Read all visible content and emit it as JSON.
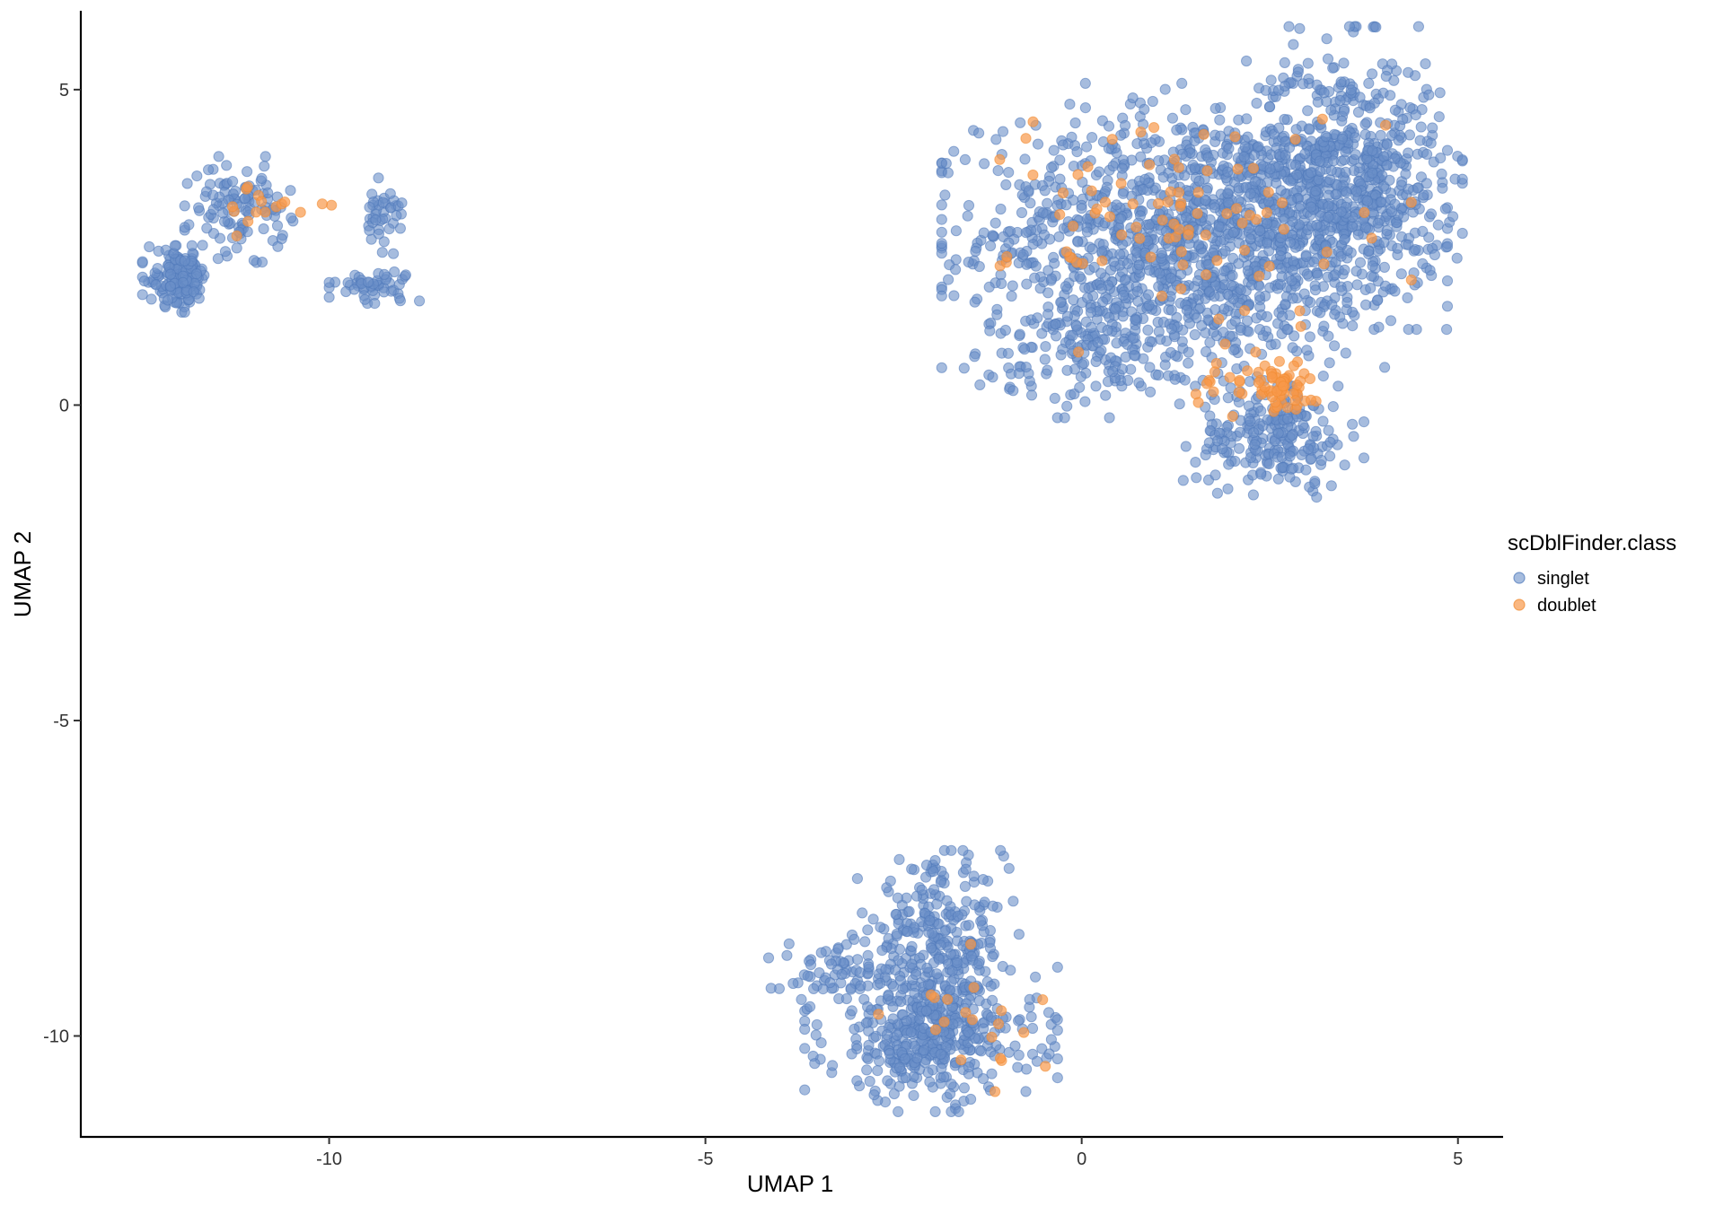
{
  "chart_data": {
    "type": "scatter",
    "title": "",
    "xlabel": "UMAP 1",
    "ylabel": "UMAP 2",
    "xlim": [
      -13.3,
      5.6
    ],
    "ylim": [
      -11.6,
      6.25
    ],
    "x_ticks": [
      -10,
      -5,
      0,
      5
    ],
    "y_ticks": [
      5,
      0,
      -5,
      -10
    ],
    "x_tick_labels": [
      "-10",
      "-5",
      "0",
      "5"
    ],
    "y_tick_labels": [
      "5",
      "0",
      "-5",
      "-10"
    ],
    "grid": false,
    "legend": {
      "title": "scDblFinder.class",
      "position": "right",
      "entries": [
        "singlet",
        "doublet"
      ]
    },
    "series": [
      {
        "name": "singlet",
        "color": "#6A8FC8",
        "opacity": 0.6,
        "clusters": [
          {
            "cx": 1.5,
            "cy": 2.7,
            "sx": 1.4,
            "sy": 1.0,
            "n": 1300
          },
          {
            "cx": 3.5,
            "cy": 3.6,
            "sx": 0.65,
            "sy": 1.0,
            "n": 600
          },
          {
            "cx": 0.3,
            "cy": 1.0,
            "sx": 0.8,
            "sy": 0.5,
            "n": 180
          },
          {
            "cx": 2.55,
            "cy": -0.5,
            "sx": 0.5,
            "sy": 0.4,
            "n": 220
          },
          {
            "cx": -2.0,
            "cy": -10.0,
            "sx": 0.7,
            "sy": 0.5,
            "n": 420
          },
          {
            "cx": -1.9,
            "cy": -8.5,
            "sx": 0.45,
            "sy": 0.6,
            "n": 260
          },
          {
            "cx": -3.2,
            "cy": -9.0,
            "sx": 0.4,
            "sy": 0.25,
            "n": 70
          },
          {
            "cx": -12.0,
            "cy": 2.0,
            "sx": 0.2,
            "sy": 0.22,
            "n": 150
          },
          {
            "cx": -11.2,
            "cy": 3.1,
            "sx": 0.3,
            "sy": 0.35,
            "n": 110
          },
          {
            "cx": -9.3,
            "cy": 3.0,
            "sx": 0.15,
            "sy": 0.25,
            "n": 40
          },
          {
            "cx": -9.4,
            "cy": 1.9,
            "sx": 0.25,
            "sy": 0.12,
            "n": 50
          }
        ]
      },
      {
        "name": "doublet",
        "color": "#F8994A",
        "opacity": 0.7,
        "clusters": [
          {
            "cx": 2.6,
            "cy": 0.3,
            "sx": 0.25,
            "sy": 0.2,
            "n": 60
          },
          {
            "cx": 1.5,
            "cy": 3.0,
            "sx": 1.2,
            "sy": 0.9,
            "n": 90
          },
          {
            "cx": 1.8,
            "cy": 0.3,
            "sx": 0.2,
            "sy": 0.15,
            "n": 12
          },
          {
            "cx": -1.5,
            "cy": -9.8,
            "sx": 0.5,
            "sy": 0.6,
            "n": 20
          },
          {
            "cx": -11.0,
            "cy": 2.9,
            "sx": 0.3,
            "sy": 0.3,
            "n": 10
          },
          {
            "cx": -10.3,
            "cy": 3.2,
            "sx": 0.2,
            "sy": 0.08,
            "n": 6
          }
        ]
      }
    ]
  }
}
